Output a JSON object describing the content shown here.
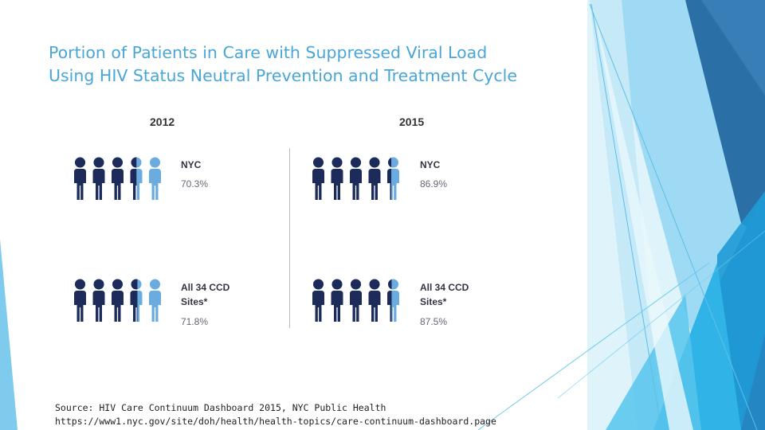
{
  "slide": {
    "title_line1": "Portion of Patients in Care with Suppressed Viral Load",
    "title_line2": "Using HIV Status Neutral Prevention and Treatment Cycle"
  },
  "colors": {
    "dark_figure": "#1d2b5a",
    "light_figure": "#6aace0",
    "title": "#4aa6d6"
  },
  "panels": [
    {
      "year": "2012",
      "groups": [
        {
          "label_lines": [
            "NYC"
          ],
          "value": "70.3%",
          "fraction": 0.703,
          "icon": "person-icon"
        },
        {
          "label_lines": [
            "All 34 CCD",
            "Sites*"
          ],
          "value": "71.8%",
          "fraction": 0.718,
          "icon": "person-icon"
        }
      ]
    },
    {
      "year": "2015",
      "groups": [
        {
          "label_lines": [
            "NYC"
          ],
          "value": "86.9%",
          "fraction": 0.869,
          "icon": "person-icon"
        },
        {
          "label_lines": [
            "All 34 CCD",
            "Sites*"
          ],
          "value": "87.5%",
          "fraction": 0.875,
          "icon": "person-icon"
        }
      ]
    }
  ],
  "source": {
    "line1": "Source: HIV Care Continuum Dashboard 2015, NYC Public Health",
    "line2": "https://www1.nyc.gov/site/doh/health/health-topics/care-continuum-dashboard.page"
  }
}
